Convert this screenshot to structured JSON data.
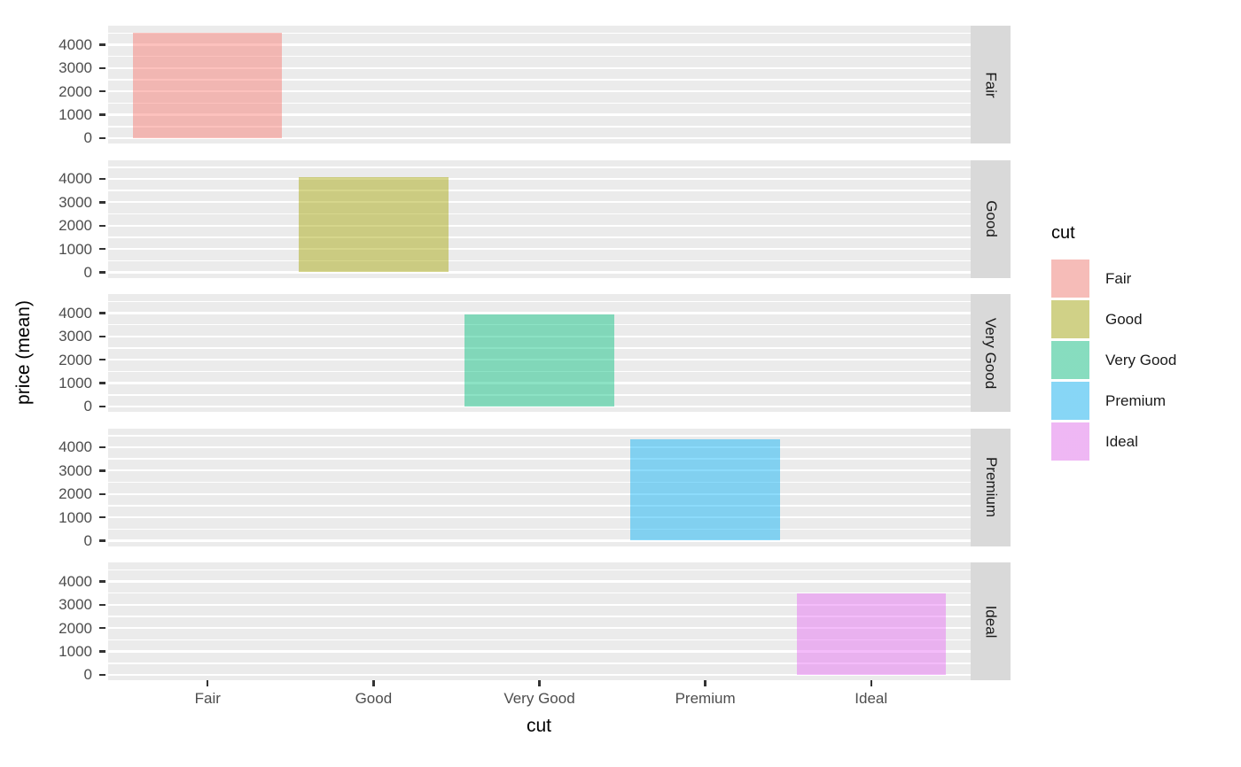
{
  "chart_data": {
    "type": "bar",
    "title": "",
    "xlabel": "cut",
    "ylabel": "price (mean)",
    "categories": [
      "Fair",
      "Good",
      "Very Good",
      "Premium",
      "Ideal"
    ],
    "values": [
      4500,
      4090,
      3930,
      4350,
      3500
    ],
    "facets": [
      "Fair",
      "Good",
      "Very Good",
      "Premium",
      "Ideal"
    ],
    "facet_layout": "rows-right-strips",
    "series_colors": [
      "#F8766D",
      "#A3A500",
      "#00BF7D",
      "#00B0F6",
      "#E76BF3"
    ],
    "fill_alpha": 0.45,
    "y_ticks": [
      0,
      1000,
      2000,
      3000,
      4000
    ],
    "ylim": [
      -230,
      4815
    ],
    "grid": "on",
    "gridline_step": 500,
    "legend": {
      "title": "cut",
      "position": "right",
      "entries": [
        "Fair",
        "Good",
        "Very Good",
        "Premium",
        "Ideal"
      ]
    },
    "colors": {
      "panel_bg": "#EBEBEB",
      "gridline": "#FFFFFF",
      "strip_bg": "#D9D9D9",
      "axis_text": "#4D4D4D",
      "tick_mark": "#333333",
      "strip_text": "#1A1A1A"
    }
  }
}
